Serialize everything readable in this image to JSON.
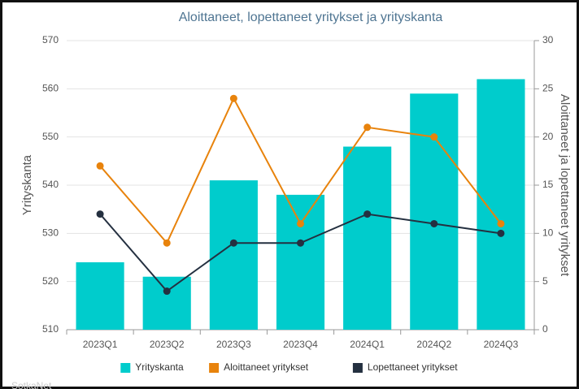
{
  "chart_data": {
    "type": "bar_line",
    "title": "Aloittaneet, lopettaneet yritykset ja yrityskanta",
    "ylabel": "Yrityskanta",
    "y2label": "Aloittaneet ja lopettaneet yritykset",
    "source": "SotkaNet",
    "categories": [
      "2023Q1",
      "2023Q2",
      "2023Q3",
      "2023Q4",
      "2024Q1",
      "2024Q2",
      "2024Q3"
    ],
    "series": [
      {
        "name": "Yrityskanta",
        "type": "bar",
        "color": "#00cccc",
        "axis": "y",
        "values": [
          524,
          521,
          541,
          538,
          548,
          559,
          562
        ]
      },
      {
        "name": "Aloittaneet yritykset",
        "type": "line",
        "color": "#e8830c",
        "axis": "y2",
        "values": [
          17,
          9,
          24,
          11,
          21,
          20,
          11
        ]
      },
      {
        "name": "Lopettaneet yritykset",
        "type": "line",
        "color": "#243040",
        "axis": "y2",
        "values": [
          12,
          4,
          9,
          9,
          12,
          11,
          10
        ]
      }
    ],
    "ylim": [
      510,
      570
    ],
    "yticks": [
      510,
      520,
      530,
      540,
      550,
      560,
      570
    ],
    "y2lim": [
      0,
      30
    ],
    "y2ticks": [
      0,
      5,
      10,
      15,
      20,
      25,
      30
    ],
    "grid": true,
    "legend": "bottom"
  }
}
